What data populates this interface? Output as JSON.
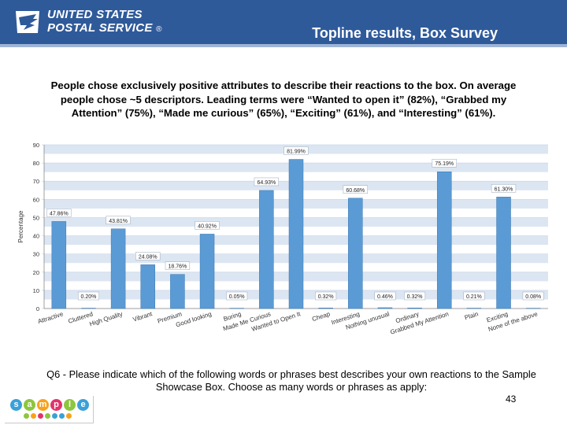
{
  "header": {
    "logo_line1": "UNITED STATES",
    "logo_line2": "POSTAL SERVICE",
    "logo_reg": "®",
    "title": "Topline results, Box Survey",
    "bg_color": "#2f5a9a"
  },
  "summary_lines": [
    "People chose exclusively positive attributes to describe their reactions to the box.   On average",
    "people chose ~5 descriptors.   Leading terms were “Wanted to open it” (82%), “Grabbed my",
    "Attention” (75%), “Made me curious” (65%), “Exciting” (61%),  and “Interesting” (61%)."
  ],
  "chart_data": {
    "type": "bar",
    "ylabel": "Percentage",
    "ylim": [
      0,
      90
    ],
    "yticks": [
      0,
      10,
      20,
      30,
      40,
      50,
      60,
      70,
      80,
      90
    ],
    "categories": [
      "Attractive",
      "Cluttered",
      "High Quality",
      "Vibrant",
      "Premium",
      "Good looking",
      "Boring",
      "Made Me Curious",
      "Wanted to Open It",
      "Cheap",
      "Interesting",
      "Nothing unusual",
      "Ordinary",
      "Grabbed My Attention",
      "Plain",
      "Exciting",
      "None of the above"
    ],
    "values": [
      47.86,
      0.2,
      43.81,
      24.08,
      18.76,
      40.92,
      0.05,
      64.93,
      81.99,
      0.32,
      60.68,
      0.46,
      0.32,
      75.19,
      0.21,
      61.3,
      0.08
    ],
    "labels": [
      "47.86%",
      "0.20%",
      "43.81%",
      "24.08%",
      "18.76%",
      "40.92%",
      "0.05%",
      "64.93%",
      "81.99%",
      "0.32%",
      "60.68%",
      "0.46%",
      "0.32%",
      "75.19%",
      "0.21%",
      "61.30%",
      "0.08%"
    ],
    "bar_color": "#5b9bd5",
    "band_color": "#dce6f2",
    "grid": true
  },
  "question": "Q6 - Please indicate which of the following words or phrases best describes your own reactions to the Sample Showcase Box.  Choose as many words or phrases as apply:",
  "page_number": "43",
  "footer_logo": {
    "letters": [
      "s",
      "a",
      "m",
      "p",
      "l",
      "e"
    ],
    "colors": [
      "#3aa0d8",
      "#8dc63f",
      "#f7a21b",
      "#e2336b",
      "#8dc63f",
      "#3aa0d8"
    ]
  }
}
